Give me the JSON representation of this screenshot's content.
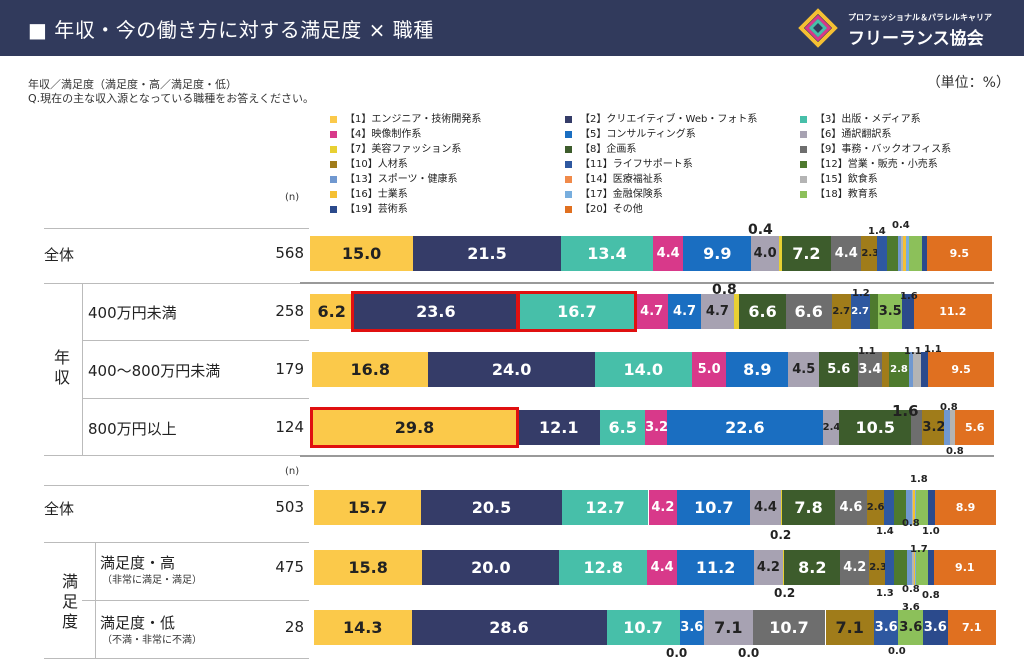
{
  "header": {
    "title": "■ 年収・今の働き方に対する満足度 × 職種",
    "logo_sub": "プロフェッショナル＆パラレルキャリア",
    "logo_org": "フリーランス協会"
  },
  "notes": {
    "line1": "年収／満足度（満足度・高／満足度・低）",
    "line2": "Q.現在の主な収入源となっている職種をお答えください。",
    "unit": "（単位：%）"
  },
  "n_label": "(n)",
  "legend": [
    {
      "label": "【1】エンジニア・技術開発系",
      "color": "#fbc94a"
    },
    {
      "label": "【2】クリエイティブ・Web・フォト系",
      "color": "#353c68"
    },
    {
      "label": "【3】出版・メディア系",
      "color": "#47bfa9"
    },
    {
      "label": "【4】映像制作系",
      "color": "#d8398a"
    },
    {
      "label": "【5】コンサルティング系",
      "color": "#1a6ec1"
    },
    {
      "label": "【6】通訳翻訳系",
      "color": "#a7a2b2"
    },
    {
      "label": "【7】美容ファッション系",
      "color": "#e8d032"
    },
    {
      "label": "【8】企画系",
      "color": "#3d5c2c"
    },
    {
      "label": "【9】事務・バックオフィス系",
      "color": "#6e6e6e"
    },
    {
      "label": "【10】人材系",
      "color": "#a07c1a"
    },
    {
      "label": "【11】ライフサポート系",
      "color": "#2e58a0"
    },
    {
      "label": "【12】営業・販売・小売系",
      "color": "#4e7a2e"
    },
    {
      "label": "【13】スポーツ・健康系",
      "color": "#7098d0"
    },
    {
      "label": "【14】医療福祉系",
      "color": "#f08a4a"
    },
    {
      "label": "【15】飲食系",
      "color": "#b4b4b4"
    },
    {
      "label": "【16】士業系",
      "color": "#f5c033"
    },
    {
      "label": "【17】金融保険系",
      "color": "#78aede"
    },
    {
      "label": "【18】教育系",
      "color": "#8cc05a"
    },
    {
      "label": "【19】芸術系",
      "color": "#2b4a8c"
    },
    {
      "label": "【20】その他",
      "color": "#e07020"
    }
  ],
  "groups": [
    {
      "label": "年収",
      "rows": [
        1,
        2,
        3
      ]
    },
    {
      "label": "満足度",
      "rows": [
        5,
        6
      ]
    }
  ],
  "rows": [
    {
      "label": "全体",
      "n": "568"
    },
    {
      "label": "400万円未満",
      "n": "258"
    },
    {
      "label": "400～800万円未満",
      "n": "179"
    },
    {
      "label": "800万円以上",
      "n": "124"
    },
    {
      "label": "全体",
      "n": "503"
    },
    {
      "label": "満足度・高",
      "sub": "（非常に満足・満足）",
      "n": "475"
    },
    {
      "label": "満足度・低",
      "sub": "（不満・非常に不満）",
      "n": "28"
    }
  ],
  "chart_data": {
    "type": "bar",
    "orientation": "horizontal-stacked-100",
    "categories": [
      "全体",
      "400万円未満",
      "400～800万円未満",
      "800万円以上",
      "全体",
      "満足度・高",
      "満足度・低"
    ],
    "series": [
      {
        "name": "【1】エンジニア・技術開発系",
        "values": [
          15.0,
          6.2,
          16.8,
          29.8,
          15.7,
          15.8,
          14.3
        ]
      },
      {
        "name": "【2】クリエイティブ・Web・フォト系",
        "values": [
          21.5,
          23.6,
          24.0,
          12.1,
          20.5,
          20.0,
          28.6
        ]
      },
      {
        "name": "【3】出版・メディア系",
        "values": [
          13.4,
          16.7,
          14.0,
          6.5,
          12.7,
          12.8,
          10.7
        ]
      },
      {
        "name": "【4】映像制作系",
        "values": [
          4.4,
          4.7,
          5.0,
          3.2,
          4.2,
          4.4,
          0.0
        ]
      },
      {
        "name": "【5】コンサルティング系",
        "values": [
          9.9,
          4.7,
          8.9,
          22.6,
          10.7,
          11.2,
          3.6
        ]
      },
      {
        "name": "【6】通訳翻訳系",
        "values": [
          4.0,
          4.7,
          4.5,
          2.4,
          4.4,
          4.2,
          7.1
        ]
      },
      {
        "name": "【7】美容ファッション系",
        "values": [
          0.4,
          0.8,
          0.0,
          0.0,
          0.2,
          0.2,
          0.0
        ]
      },
      {
        "name": "【8】企画系",
        "values": [
          7.2,
          6.6,
          5.6,
          10.5,
          7.8,
          8.2,
          0.0
        ]
      },
      {
        "name": "【9】事務・バックオフィス系",
        "values": [
          4.4,
          6.6,
          3.4,
          1.6,
          4.6,
          4.2,
          10.7
        ]
      },
      {
        "name": "【10】人材系",
        "values": [
          2.3,
          2.7,
          1.1,
          3.2,
          2.6,
          2.3,
          7.1
        ]
      },
      {
        "name": "【11】ライフサポート系",
        "values": [
          1.4,
          2.7,
          0.0,
          0.0,
          1.4,
          1.3,
          3.6
        ]
      },
      {
        "name": "【12】営業・販売・小売系",
        "values": [
          1.6,
          1.2,
          2.8,
          0.0,
          1.8,
          1.9,
          0.0
        ]
      },
      {
        "name": "【13】スポーツ・健康系",
        "values": [
          0.4,
          0.0,
          0.6,
          0.8,
          0.8,
          0.8,
          0.0
        ]
      },
      {
        "name": "【14】医療福祉系",
        "values": [
          0.0,
          0.0,
          0.0,
          0.0,
          0.0,
          0.0,
          0.0
        ]
      },
      {
        "name": "【15】飲食系",
        "values": [
          0.4,
          0.0,
          1.1,
          0.8,
          0.2,
          0.2,
          0.0
        ]
      },
      {
        "name": "【16】士業系",
        "values": [
          0.4,
          0.0,
          0.0,
          0.0,
          0.2,
          0.2,
          0.0
        ]
      },
      {
        "name": "【17】金融保険系",
        "values": [
          0.4,
          0.0,
          0.0,
          0.0,
          0.2,
          0.2,
          0.0
        ]
      },
      {
        "name": "【18】教育系",
        "values": [
          1.9,
          3.5,
          0.0,
          0.0,
          1.8,
          1.7,
          3.6
        ]
      },
      {
        "name": "【19】芸術系",
        "values": [
          0.7,
          1.6,
          1.1,
          0.0,
          1.0,
          0.8,
          3.6
        ]
      },
      {
        "name": "【20】その他",
        "values": [
          9.5,
          11.2,
          9.5,
          5.6,
          8.9,
          9.1,
          7.1
        ]
      }
    ],
    "highlighted": [
      {
        "row": 1,
        "series": [
          1,
          2
        ]
      },
      {
        "row": 3,
        "series": [
          0
        ]
      }
    ],
    "outside_labels": [
      {
        "row": 0,
        "text": "0.4"
      },
      {
        "row": 0,
        "text": "1.4"
      },
      {
        "row": 0,
        "text": "0.4"
      },
      {
        "row": 1,
        "text": "0.8"
      },
      {
        "row": 1,
        "text": "1.2"
      },
      {
        "row": 1,
        "text": "1.6"
      },
      {
        "row": 2,
        "text": "1.1"
      },
      {
        "row": 2,
        "text": "1.1"
      },
      {
        "row": 2,
        "text": "1.1"
      },
      {
        "row": 3,
        "text": "1.6"
      },
      {
        "row": 3,
        "text": "0.8"
      },
      {
        "row": 3,
        "text": "0.8"
      },
      {
        "row": 4,
        "text": "1.8"
      },
      {
        "row": 4,
        "text": "0.2"
      },
      {
        "row": 4,
        "text": "1.4"
      },
      {
        "row": 4,
        "text": "0.8"
      },
      {
        "row": 4,
        "text": "1.0"
      },
      {
        "row": 5,
        "text": "1.7"
      },
      {
        "row": 5,
        "text": "0.2"
      },
      {
        "row": 5,
        "text": "1.3"
      },
      {
        "row": 5,
        "text": "0.8"
      },
      {
        "row": 5,
        "text": "0.8"
      },
      {
        "row": 6,
        "text": "3.6"
      },
      {
        "row": 6,
        "text": "0.0"
      },
      {
        "row": 6,
        "text": "0.0"
      },
      {
        "row": 6,
        "text": "0.0"
      }
    ]
  }
}
